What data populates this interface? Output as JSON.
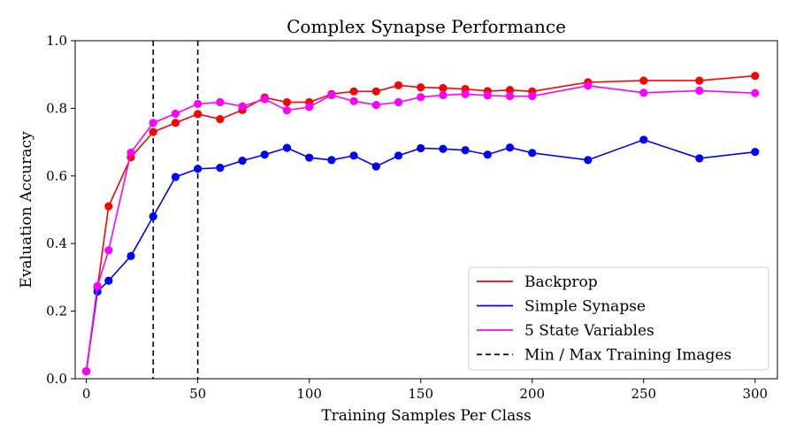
{
  "chart_data": {
    "type": "line",
    "title": "Complex Synapse Performance",
    "xlabel": "Training Samples Per Class",
    "ylabel": "Evaluation Accuracy",
    "xlim": [
      -5,
      310
    ],
    "ylim": [
      0.0,
      1.0
    ],
    "xticks": [
      0,
      50,
      100,
      150,
      200,
      250,
      300
    ],
    "yticks": [
      0.0,
      0.2,
      0.4,
      0.6,
      0.8,
      1.0
    ],
    "xtick_labels": [
      "0",
      "50",
      "100",
      "150",
      "200",
      "250",
      "300"
    ],
    "ytick_labels": [
      "0.0",
      "0.2",
      "0.4",
      "0.6",
      "0.8",
      "1.0"
    ],
    "grid": false,
    "legend_position": "bottom-right",
    "series": [
      {
        "name": "Backprop",
        "color": "#ff0000",
        "points": [
          [
            0,
            0.022
          ],
          [
            5,
            0.27
          ],
          [
            10,
            0.51
          ],
          [
            20,
            0.655
          ],
          [
            30,
            0.73
          ],
          [
            40,
            0.757
          ],
          [
            50,
            0.783
          ],
          [
            60,
            0.768
          ],
          [
            70,
            0.795
          ],
          [
            80,
            0.832
          ],
          [
            90,
            0.818
          ],
          [
            100,
            0.818
          ],
          [
            110,
            0.842
          ],
          [
            120,
            0.85
          ],
          [
            130,
            0.85
          ],
          [
            140,
            0.868
          ],
          [
            150,
            0.862
          ],
          [
            160,
            0.86
          ],
          [
            170,
            0.857
          ],
          [
            180,
            0.851
          ],
          [
            190,
            0.854
          ],
          [
            200,
            0.85
          ],
          [
            225,
            0.877
          ],
          [
            250,
            0.882
          ],
          [
            275,
            0.882
          ],
          [
            300,
            0.896
          ]
        ]
      },
      {
        "name": "Simple Synapse",
        "color": "#0000ff",
        "points": [
          [
            0,
            0.022
          ],
          [
            5,
            0.258
          ],
          [
            10,
            0.29
          ],
          [
            20,
            0.363
          ],
          [
            30,
            0.48
          ],
          [
            40,
            0.597
          ],
          [
            50,
            0.621
          ],
          [
            60,
            0.624
          ],
          [
            70,
            0.645
          ],
          [
            80,
            0.663
          ],
          [
            90,
            0.683
          ],
          [
            100,
            0.654
          ],
          [
            110,
            0.647
          ],
          [
            120,
            0.66
          ],
          [
            130,
            0.628
          ],
          [
            140,
            0.66
          ],
          [
            150,
            0.682
          ],
          [
            160,
            0.68
          ],
          [
            170,
            0.676
          ],
          [
            180,
            0.663
          ],
          [
            190,
            0.684
          ],
          [
            200,
            0.668
          ],
          [
            225,
            0.647
          ],
          [
            250,
            0.707
          ],
          [
            275,
            0.652
          ],
          [
            300,
            0.671
          ]
        ]
      },
      {
        "name": "5 State Variables",
        "color": "#ff00ff",
        "points": [
          [
            0,
            0.022
          ],
          [
            5,
            0.274
          ],
          [
            10,
            0.38
          ],
          [
            20,
            0.669
          ],
          [
            30,
            0.757
          ],
          [
            40,
            0.784
          ],
          [
            50,
            0.813
          ],
          [
            60,
            0.818
          ],
          [
            70,
            0.806
          ],
          [
            80,
            0.827
          ],
          [
            90,
            0.794
          ],
          [
            100,
            0.804
          ],
          [
            110,
            0.839
          ],
          [
            120,
            0.821
          ],
          [
            130,
            0.81
          ],
          [
            140,
            0.818
          ],
          [
            150,
            0.833
          ],
          [
            160,
            0.839
          ],
          [
            170,
            0.842
          ],
          [
            180,
            0.838
          ],
          [
            190,
            0.836
          ],
          [
            200,
            0.836
          ],
          [
            225,
            0.867
          ],
          [
            250,
            0.846
          ],
          [
            275,
            0.852
          ],
          [
            300,
            0.845
          ]
        ]
      }
    ],
    "vlines": [
      {
        "x": 30,
        "color": "#000000",
        "style": "dashed"
      },
      {
        "x": 50,
        "color": "#000000",
        "style": "dashed"
      }
    ],
    "legend_entries": [
      {
        "label": "Backprop",
        "color": "#ff0000",
        "style": "solid"
      },
      {
        "label": "Simple Synapse",
        "color": "#0000ff",
        "style": "solid"
      },
      {
        "label": "5 State Variables",
        "color": "#ff00ff",
        "style": "solid"
      },
      {
        "label": "Min / Max Training Images",
        "color": "#000000",
        "style": "dashed"
      }
    ]
  }
}
